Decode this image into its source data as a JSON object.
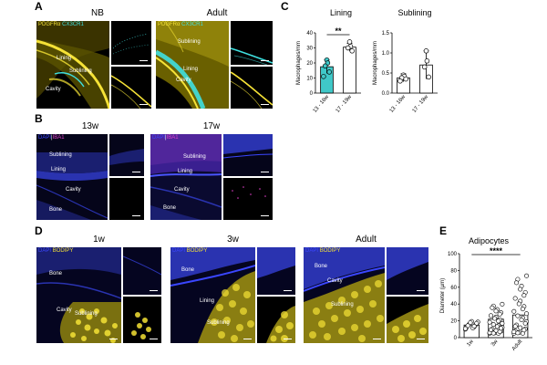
{
  "panels": {
    "A": {
      "label": "A",
      "columns": [
        "NB",
        "Adult"
      ],
      "stain": [
        "PDGFRα",
        "CX3CR1"
      ],
      "nb_tissue": [
        "Lining",
        "Sublining",
        "Cavity"
      ],
      "adult_tissue": [
        "Sublining",
        "Lining",
        "Cavity"
      ]
    },
    "B": {
      "label": "B",
      "columns": [
        "13w",
        "17w"
      ],
      "stain": [
        "DAPI",
        "IBA1"
      ],
      "w13_tissue": [
        "Sublining",
        "Lining",
        "Cavity",
        "Bone"
      ],
      "w17_tissue": [
        "Sublining",
        "Lining",
        "Cavity",
        "Bone"
      ]
    },
    "C": {
      "label": "C",
      "significance": "**"
    },
    "D": {
      "label": "D",
      "columns": [
        "1w",
        "3w",
        "Adult"
      ],
      "stain": [
        "DAPI",
        "BODIPY"
      ],
      "w1_tissue": [
        "Bone",
        "Cavity",
        "Sublining"
      ],
      "w3_tissue": [
        "Bone",
        "Lining",
        "Sublining"
      ],
      "adult_tissue": [
        "Bone",
        "Cavity",
        "Sublining"
      ]
    },
    "E": {
      "label": "E",
      "significance": "****"
    }
  },
  "colors": {
    "yellow": "#f5e236",
    "cyan": "#3fe0e0",
    "blue": "#3a46ff",
    "magenta": "#e040c8",
    "teal_fill": "#40c8c8"
  },
  "chart_data": [
    {
      "type": "bar",
      "title": "Lining",
      "ylabel": "Macrophages/mm",
      "categories": [
        "13 - 16w",
        "17 - 19w"
      ],
      "values": [
        17.5,
        30.5
      ],
      "errors": [
        4.5,
        2.5
      ],
      "points": [
        [
          22,
          20,
          18,
          14,
          11
        ],
        [
          34,
          31,
          30,
          28
        ]
      ],
      "ylim": [
        0,
        40
      ],
      "yticks": [
        0,
        10,
        20,
        30,
        40
      ],
      "fills": [
        "#40c8c8",
        "#ffffff"
      ],
      "significance": "**"
    },
    {
      "type": "bar",
      "title": "Sublining",
      "ylabel": "Macrophages/mm",
      "categories": [
        "13 - 16w",
        "17 - 19w"
      ],
      "values": [
        0.38,
        0.7
      ],
      "errors": [
        0.1,
        0.35
      ],
      "points": [
        [
          0.45,
          0.42,
          0.38,
          0.35,
          0.3
        ],
        [
          1.05,
          0.8,
          0.65,
          0.4
        ]
      ],
      "ylim": [
        0,
        1.5
      ],
      "yticks": [
        0.0,
        0.5,
        1.0,
        1.5
      ],
      "yticklabels": [
        "0.0",
        "0.5",
        "1.0",
        "1.5"
      ],
      "fills": [
        "#ffffff",
        "#ffffff"
      ]
    },
    {
      "type": "bar",
      "title": "Adipocytes",
      "ylabel": "Diameter (µm)",
      "categories": [
        "1w",
        "3w",
        "Adult"
      ],
      "values": [
        15,
        22,
        27
      ],
      "ylim": [
        0,
        100
      ],
      "yticks": [
        0,
        20,
        40,
        60,
        80,
        100
      ],
      "significance": "****"
    }
  ]
}
